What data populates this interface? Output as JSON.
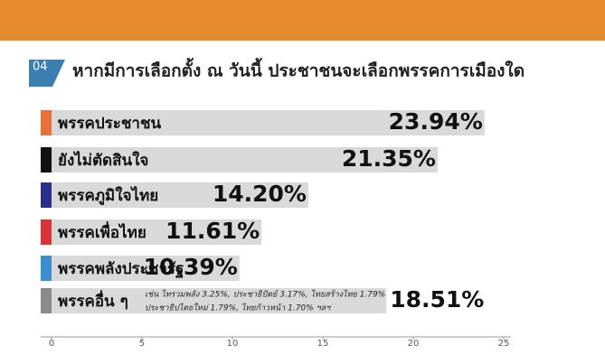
{
  "chart_data": {
    "type": "bar",
    "orientation": "horizontal",
    "badge": "04",
    "title": "หากมีการเลือกตั้ง ณ วันนี้ ประชาชนจะเลือกพรรคการเมืองใด",
    "categories": [
      "พรรคประชาชน",
      "ยังไม่ตัดสินใจ",
      "พรรคภูมิใจไทย",
      "พรรคเพื่อไทย",
      "พรรคพลังประชารัฐ",
      "พรรคอื่น ๆ"
    ],
    "values": [
      23.94,
      21.35,
      14.2,
      11.61,
      10.39,
      18.51
    ],
    "value_labels": [
      "23.94%",
      "21.35%",
      "14.20%",
      "11.61%",
      "10.39%",
      "18.51%"
    ],
    "colors": [
      "#e8703a",
      "#111111",
      "#2b2f8c",
      "#d9343a",
      "#3b8fd0",
      "#8a8a8a"
    ],
    "bar_color": "#d9d9d9",
    "annotation": [
      "เช่น ไทรวมพลัง 3.25%, ประชาธิปัตย์ 3.17%, ไทยสร้างไทย 1.79%",
      "ประชาธิปไตยใหม่ 1.79%, ไทยก้าวหน้า 1.70% ฯลฯ"
    ],
    "xlim": [
      0,
      25
    ],
    "xticks": [
      0,
      5,
      10,
      15,
      20,
      25
    ]
  }
}
